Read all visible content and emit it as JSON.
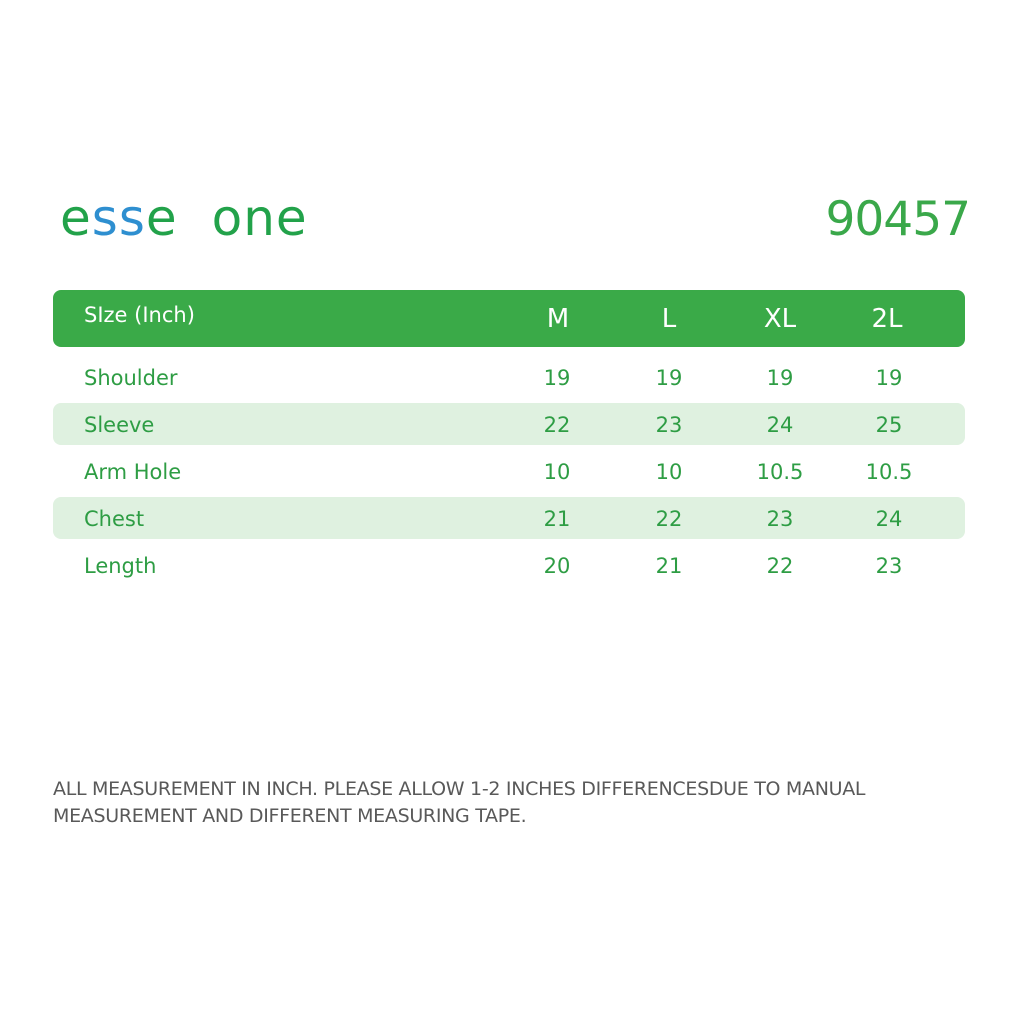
{
  "brand": {
    "logo_parts": [
      "e",
      "ss",
      "e",
      "one"
    ],
    "logo_text": "esse one",
    "colors": {
      "green": "#22a24a",
      "blue": "#2e8fd0"
    }
  },
  "product_code": "90457",
  "table": {
    "header_label": "SIze (Inch)",
    "columns": [
      "M",
      "L",
      "XL",
      "2L"
    ],
    "rows": [
      {
        "label": "Shoulder",
        "values": [
          "19",
          "19",
          "19",
          "19"
        ],
        "shaded": false
      },
      {
        "label": "Sleeve",
        "values": [
          "22",
          "23",
          "24",
          "25"
        ],
        "shaded": true
      },
      {
        "label": "Arm Hole",
        "values": [
          "10",
          "10",
          "10.5",
          "10.5"
        ],
        "shaded": false
      },
      {
        "label": "Chest",
        "values": [
          "21",
          "22",
          "23",
          "24"
        ],
        "shaded": true
      },
      {
        "label": "Length",
        "values": [
          "20",
          "21",
          "22",
          "23"
        ],
        "shaded": false
      }
    ],
    "colors": {
      "header_bg": "#3aaa48",
      "row_shade": "#dff1e0",
      "text": "#2e9d44"
    }
  },
  "note": {
    "line1": "ALL MEASUREMENT IN INCH. PLEASE ALLOW 1-2 INCHES DIFFERENCESDUE TO MANUAL",
    "line2": "MEASUREMENT AND DIFFERENT MEASURING TAPE."
  }
}
